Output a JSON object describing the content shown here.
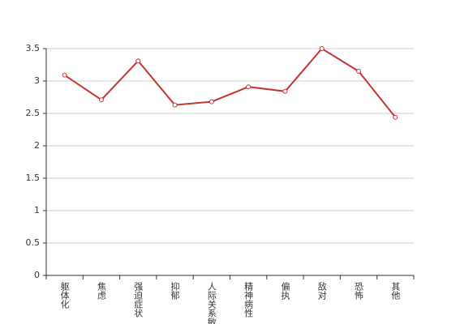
{
  "chart_data": {
    "type": "line",
    "categories": [
      "躯体化",
      "焦虑",
      "强迫症状",
      "抑郁",
      "人际关系敏感",
      "精神病性",
      "偏执",
      "敌对",
      "恐怖",
      "其他"
    ],
    "series": [
      {
        "color": "#c23531",
        "values": [
          3.09,
          2.71,
          3.31,
          2.63,
          2.68,
          2.91,
          2.84,
          3.5,
          3.15,
          2.44
        ]
      }
    ],
    "ylim": [
      0,
      3.5
    ],
    "yticks": [
      0,
      0.5,
      1,
      1.5,
      2,
      2.5,
      3,
      3.5
    ],
    "grid": true
  }
}
